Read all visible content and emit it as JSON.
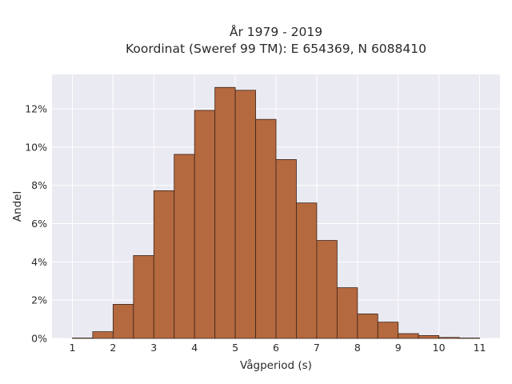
{
  "chart_data": {
    "type": "bar",
    "title_line1": "År 1979 - 2019",
    "title_line2": "Koordinat (Sweref 99 TM): E 654369, N 6088410",
    "xlabel": "Vågperiod (s)",
    "ylabel": "Andel",
    "bin_width": 0.5,
    "bin_starts": [
      1.0,
      1.5,
      2.0,
      2.5,
      3.0,
      3.5,
      4.0,
      4.5,
      5.0,
      5.5,
      6.0,
      6.5,
      7.0,
      7.5,
      8.0,
      8.5,
      9.0,
      9.5,
      10.0,
      10.5
    ],
    "values": [
      0.02,
      0.35,
      1.78,
      4.33,
      7.72,
      9.62,
      11.92,
      13.12,
      12.97,
      11.45,
      9.35,
      7.08,
      5.12,
      2.65,
      1.28,
      0.85,
      0.25,
      0.15,
      0.05,
      0.02
    ],
    "xlim": [
      0.5,
      11.5
    ],
    "ylim": [
      0,
      13.8
    ],
    "xticks": [
      1,
      2,
      3,
      4,
      5,
      6,
      7,
      8,
      9,
      10,
      11
    ],
    "yticks": [
      0,
      2,
      4,
      6,
      8,
      10,
      12
    ],
    "ytick_labels": [
      "0%",
      "2%",
      "4%",
      "6%",
      "8%",
      "10%",
      "12%"
    ],
    "grid": true,
    "colors": {
      "bar_fill": "#b5693f",
      "bar_edge": "#3a2418",
      "plot_bg": "#eaeaf2",
      "grid": "#ffffff"
    }
  }
}
